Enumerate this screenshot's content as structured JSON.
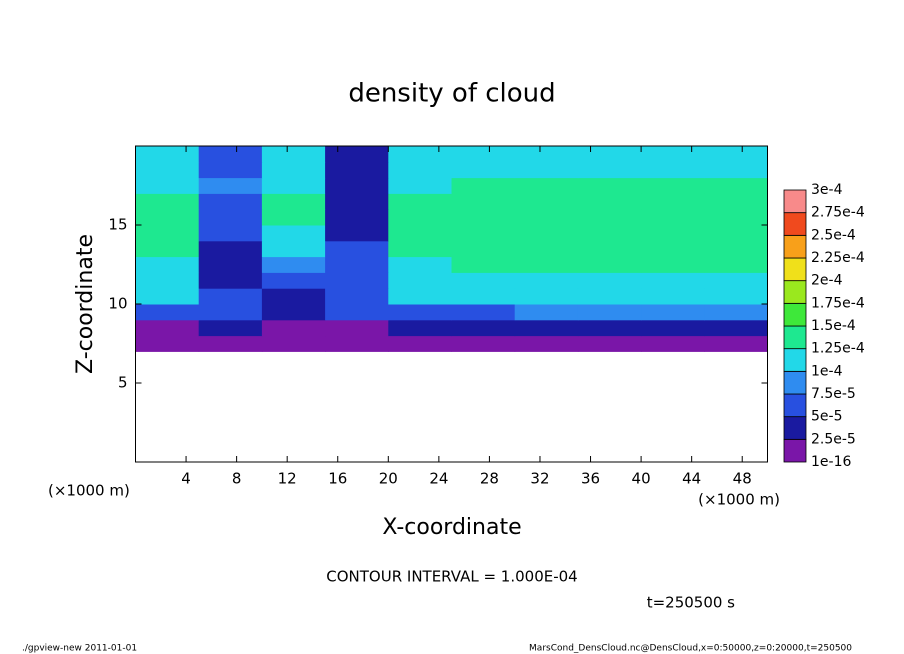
{
  "chart_data": {
    "type": "heatmap",
    "title": "density of cloud",
    "x_label": "X-coordinate",
    "y_label": "Z-coordinate",
    "x_unit_left": "(×1000 m)",
    "x_unit_right": "(×1000 m)",
    "contour_note": "CONTOUR INTERVAL = 1.000E-04",
    "time_note": "t=250500 s",
    "footer_left": "./gpview-new   2011-01-01",
    "footer_right": "MarsCond_DensCloud.nc@DensCloud,x=0:50000,z=0:20000,t=250500",
    "xlim": [
      0,
      50
    ],
    "ylim": [
      0,
      20
    ],
    "xticks": [
      4,
      8,
      12,
      16,
      20,
      24,
      28,
      32,
      36,
      40,
      44,
      48
    ],
    "yticks": [
      5,
      10,
      15
    ],
    "xbins": [
      0,
      5,
      10,
      15,
      20,
      25,
      30,
      35,
      40,
      45,
      50
    ],
    "ybins": [
      7,
      8,
      9,
      10,
      11,
      12,
      13,
      14,
      15,
      16,
      17,
      18,
      19,
      20
    ],
    "values": [
      [
        1e-05,
        1e-05,
        1e-05,
        1e-05,
        1e-05,
        1e-05,
        1e-05,
        1e-05,
        1e-05,
        1e-05
      ],
      [
        2e-05,
        3e-05,
        2e-05,
        2e-05,
        3e-05,
        3e-05,
        4e-05,
        4e-05,
        4e-05,
        4e-05
      ],
      [
        5e-05,
        6e-05,
        4e-05,
        5e-05,
        7e-05,
        7e-05,
        8e-05,
        8e-05,
        8e-05,
        8e-05
      ],
      [
        0.0001,
        7e-05,
        3e-05,
        6e-05,
        0.0001,
        0.00011,
        0.00011,
        0.00011,
        0.00011,
        0.00011
      ],
      [
        0.00011,
        3e-05,
        5e-05,
        5e-05,
        0.00011,
        0.00012,
        0.00012,
        0.00012,
        0.00012,
        0.00012
      ],
      [
        0.00012,
        3e-05,
        8e-05,
        5e-05,
        0.00012,
        0.00013,
        0.00013,
        0.00013,
        0.00013,
        0.00013
      ],
      [
        0.00013,
        4e-05,
        0.00011,
        5e-05,
        0.00013,
        0.00014,
        0.00014,
        0.00014,
        0.00013,
        0.00013
      ],
      [
        0.00013,
        5e-05,
        0.00012,
        4e-05,
        0.00013,
        0.00014,
        0.00014,
        0.00014,
        0.00013,
        0.00013
      ],
      [
        0.00013,
        6e-05,
        0.00013,
        4e-05,
        0.00013,
        0.00014,
        0.00014,
        0.00014,
        0.00013,
        0.00013
      ],
      [
        0.00013,
        7e-05,
        0.00013,
        3e-05,
        0.00013,
        0.00013,
        0.00013,
        0.00013,
        0.00013,
        0.00013
      ],
      [
        0.00012,
        8e-05,
        0.00012,
        3e-05,
        0.00012,
        0.00013,
        0.00013,
        0.00013,
        0.00013,
        0.00013
      ],
      [
        0.00012,
        6e-05,
        0.00012,
        4e-05,
        0.00012,
        0.00012,
        0.00012,
        0.00012,
        0.00012,
        0.00012
      ],
      [
        0.00012,
        5e-05,
        0.00012,
        4e-05,
        0.00012,
        0.00012,
        0.00012,
        0.00012,
        0.00012,
        0.00012
      ]
    ],
    "levels": [
      {
        "value": 1e-16,
        "label": "1e-16"
      },
      {
        "value": 2.5e-05,
        "label": "2.5e-5"
      },
      {
        "value": 5e-05,
        "label": "5e-5"
      },
      {
        "value": 7.5e-05,
        "label": "7.5e-5"
      },
      {
        "value": 0.0001,
        "label": "1e-4"
      },
      {
        "value": 0.000125,
        "label": "1.25e-4"
      },
      {
        "value": 0.00015,
        "label": "1.5e-4"
      },
      {
        "value": 0.000175,
        "label": "1.75e-4"
      },
      {
        "value": 0.0002,
        "label": "2e-4"
      },
      {
        "value": 0.000225,
        "label": "2.25e-4"
      },
      {
        "value": 0.00025,
        "label": "2.5e-4"
      },
      {
        "value": 0.000275,
        "label": "2.75e-4"
      },
      {
        "value": 0.0003,
        "label": "3e-4"
      }
    ],
    "colors": [
      "#7a16a8",
      "#1a1aa0",
      "#2850e0",
      "#2f8cf0",
      "#22d8e8",
      "#1ee890",
      "#3ee83a",
      "#9ae81e",
      "#f0e01a",
      "#f8a01a",
      "#f04a1e",
      "#f88a8a"
    ]
  }
}
